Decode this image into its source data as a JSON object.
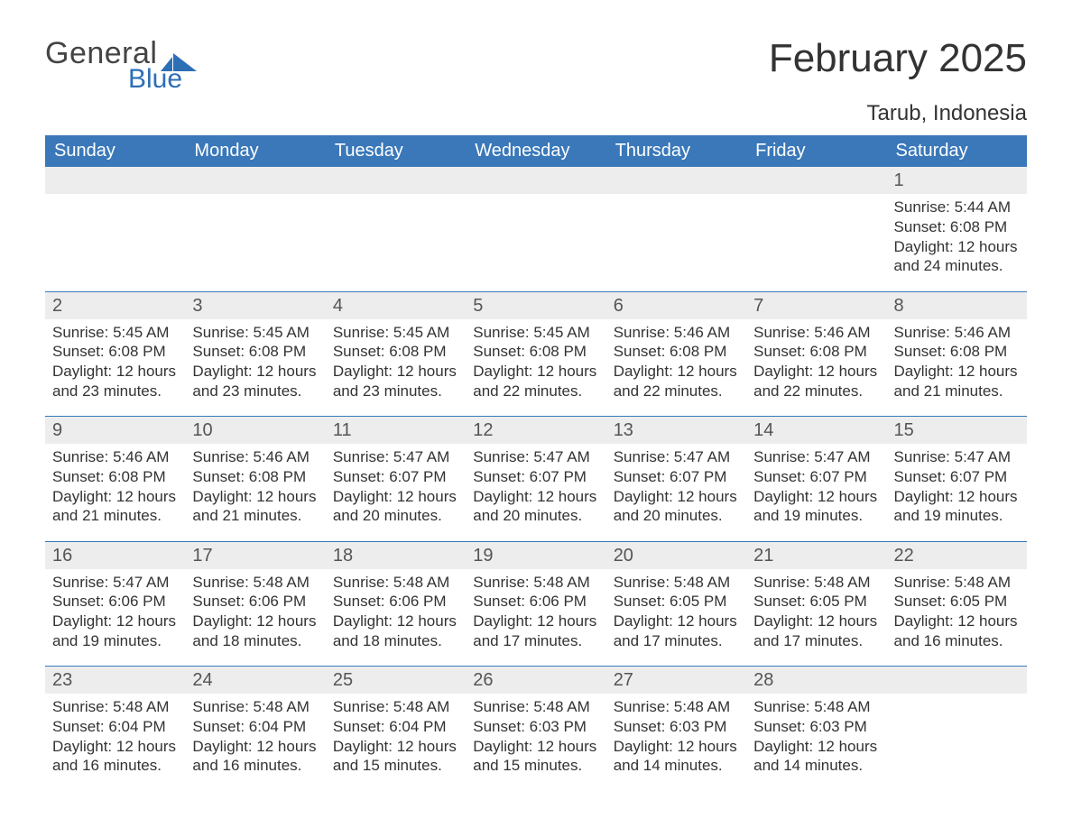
{
  "colors": {
    "header_bg": "#3a78b9",
    "header_text": "#ffffff",
    "daynum_bg": "#ededed",
    "daynum_text": "#555555",
    "body_text": "#333333",
    "separator": "#3a78b9",
    "logo_blue": "#2d6fb5",
    "page_bg": "#ffffff"
  },
  "logo": {
    "text1": "General",
    "text2": "Blue"
  },
  "title": "February 2025",
  "location": "Tarub, Indonesia",
  "weekdays": [
    "Sunday",
    "Monday",
    "Tuesday",
    "Wednesday",
    "Thursday",
    "Friday",
    "Saturday"
  ],
  "labels": {
    "sunrise": "Sunrise:",
    "sunset": "Sunset:",
    "daylight": "Daylight:"
  },
  "weeks": [
    [
      null,
      null,
      null,
      null,
      null,
      null,
      {
        "n": "1",
        "sunrise": "5:44 AM",
        "sunset": "6:08 PM",
        "daylight": "12 hours and 24 minutes."
      }
    ],
    [
      {
        "n": "2",
        "sunrise": "5:45 AM",
        "sunset": "6:08 PM",
        "daylight": "12 hours and 23 minutes."
      },
      {
        "n": "3",
        "sunrise": "5:45 AM",
        "sunset": "6:08 PM",
        "daylight": "12 hours and 23 minutes."
      },
      {
        "n": "4",
        "sunrise": "5:45 AM",
        "sunset": "6:08 PM",
        "daylight": "12 hours and 23 minutes."
      },
      {
        "n": "5",
        "sunrise": "5:45 AM",
        "sunset": "6:08 PM",
        "daylight": "12 hours and 22 minutes."
      },
      {
        "n": "6",
        "sunrise": "5:46 AM",
        "sunset": "6:08 PM",
        "daylight": "12 hours and 22 minutes."
      },
      {
        "n": "7",
        "sunrise": "5:46 AM",
        "sunset": "6:08 PM",
        "daylight": "12 hours and 22 minutes."
      },
      {
        "n": "8",
        "sunrise": "5:46 AM",
        "sunset": "6:08 PM",
        "daylight": "12 hours and 21 minutes."
      }
    ],
    [
      {
        "n": "9",
        "sunrise": "5:46 AM",
        "sunset": "6:08 PM",
        "daylight": "12 hours and 21 minutes."
      },
      {
        "n": "10",
        "sunrise": "5:46 AM",
        "sunset": "6:08 PM",
        "daylight": "12 hours and 21 minutes."
      },
      {
        "n": "11",
        "sunrise": "5:47 AM",
        "sunset": "6:07 PM",
        "daylight": "12 hours and 20 minutes."
      },
      {
        "n": "12",
        "sunrise": "5:47 AM",
        "sunset": "6:07 PM",
        "daylight": "12 hours and 20 minutes."
      },
      {
        "n": "13",
        "sunrise": "5:47 AM",
        "sunset": "6:07 PM",
        "daylight": "12 hours and 20 minutes."
      },
      {
        "n": "14",
        "sunrise": "5:47 AM",
        "sunset": "6:07 PM",
        "daylight": "12 hours and 19 minutes."
      },
      {
        "n": "15",
        "sunrise": "5:47 AM",
        "sunset": "6:07 PM",
        "daylight": "12 hours and 19 minutes."
      }
    ],
    [
      {
        "n": "16",
        "sunrise": "5:47 AM",
        "sunset": "6:06 PM",
        "daylight": "12 hours and 19 minutes."
      },
      {
        "n": "17",
        "sunrise": "5:48 AM",
        "sunset": "6:06 PM",
        "daylight": "12 hours and 18 minutes."
      },
      {
        "n": "18",
        "sunrise": "5:48 AM",
        "sunset": "6:06 PM",
        "daylight": "12 hours and 18 minutes."
      },
      {
        "n": "19",
        "sunrise": "5:48 AM",
        "sunset": "6:06 PM",
        "daylight": "12 hours and 17 minutes."
      },
      {
        "n": "20",
        "sunrise": "5:48 AM",
        "sunset": "6:05 PM",
        "daylight": "12 hours and 17 minutes."
      },
      {
        "n": "21",
        "sunrise": "5:48 AM",
        "sunset": "6:05 PM",
        "daylight": "12 hours and 17 minutes."
      },
      {
        "n": "22",
        "sunrise": "5:48 AM",
        "sunset": "6:05 PM",
        "daylight": "12 hours and 16 minutes."
      }
    ],
    [
      {
        "n": "23",
        "sunrise": "5:48 AM",
        "sunset": "6:04 PM",
        "daylight": "12 hours and 16 minutes."
      },
      {
        "n": "24",
        "sunrise": "5:48 AM",
        "sunset": "6:04 PM",
        "daylight": "12 hours and 16 minutes."
      },
      {
        "n": "25",
        "sunrise": "5:48 AM",
        "sunset": "6:04 PM",
        "daylight": "12 hours and 15 minutes."
      },
      {
        "n": "26",
        "sunrise": "5:48 AM",
        "sunset": "6:03 PM",
        "daylight": "12 hours and 15 minutes."
      },
      {
        "n": "27",
        "sunrise": "5:48 AM",
        "sunset": "6:03 PM",
        "daylight": "12 hours and 14 minutes."
      },
      {
        "n": "28",
        "sunrise": "5:48 AM",
        "sunset": "6:03 PM",
        "daylight": "12 hours and 14 minutes."
      },
      null
    ]
  ]
}
